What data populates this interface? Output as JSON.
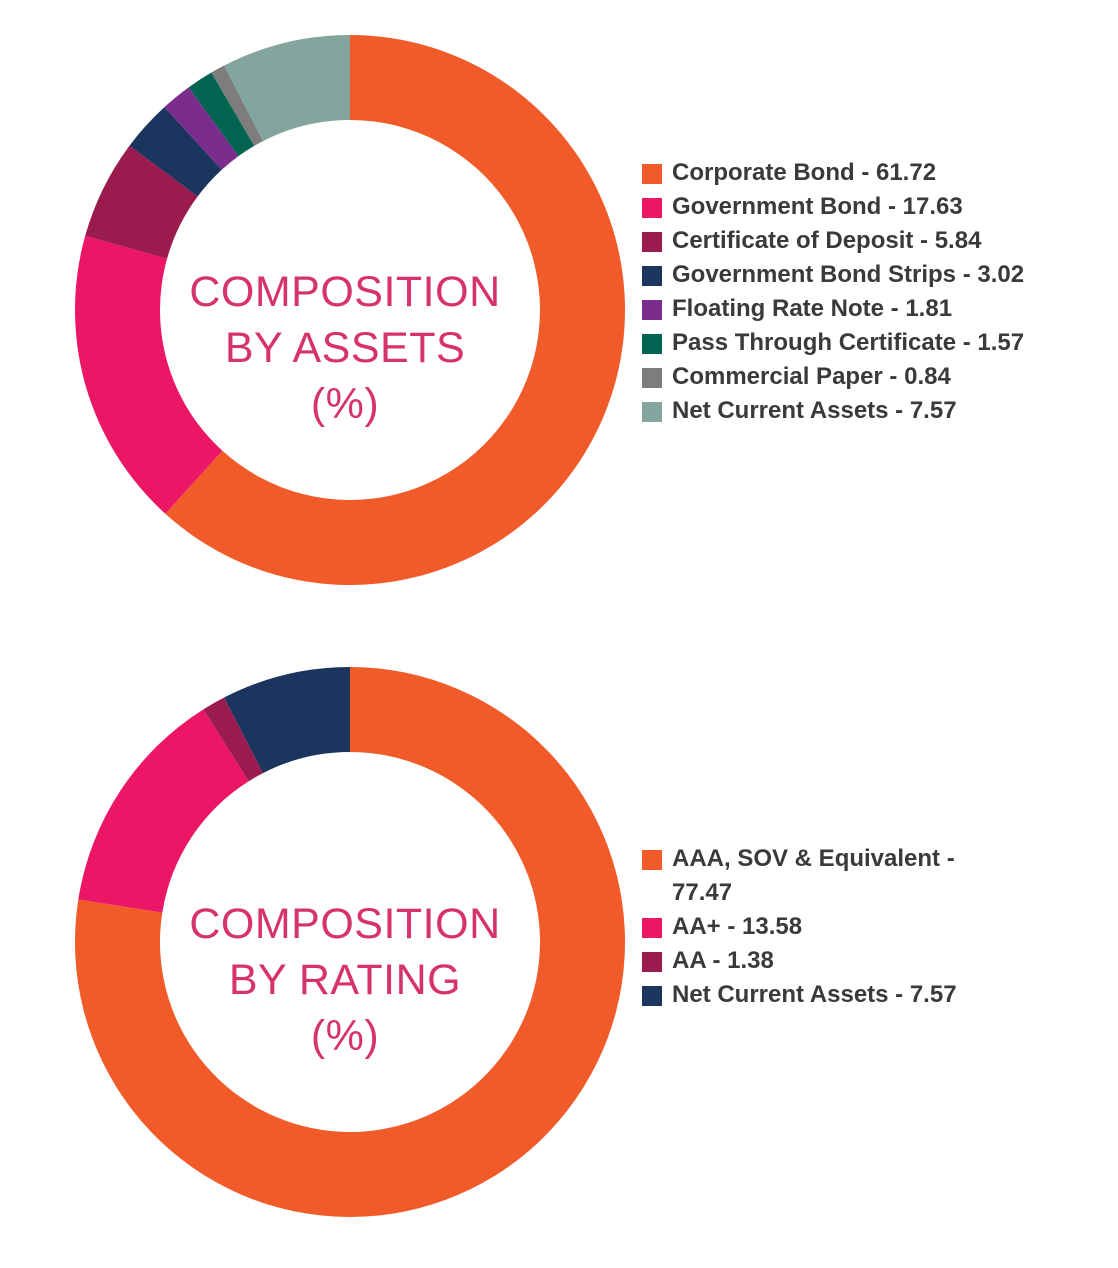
{
  "chart_data": [
    {
      "type": "pie",
      "title_lines": [
        "COMPOSITION",
        "BY ASSETS",
        "(%)"
      ],
      "categories": [
        "Corporate Bond",
        "Government Bond",
        "Certificate of Deposit",
        "Government Bond Strips",
        "Floating Rate Note",
        "Pass Through Certificate",
        "Commercial Paper",
        "Net Current Assets"
      ],
      "values": [
        61.72,
        17.63,
        5.84,
        3.02,
        1.81,
        1.57,
        0.84,
        7.57
      ],
      "colors": [
        "#f15a29",
        "#ec1667",
        "#9b1b4e",
        "#1c355e",
        "#7b2d8e",
        "#006450",
        "#7d7d7d",
        "#83a59d"
      ],
      "legend_labels": [
        "Corporate Bond - 61.72",
        "Government Bond - 17.63",
        "Certificate of Deposit - 5.84",
        "Government Bond Strips - 3.02",
        "Floating Rate Note - 1.81",
        "Pass Through Certificate - 1.57",
        "Commercial Paper - 0.84",
        "Net Current Assets - 7.57"
      ],
      "legend_placement": "right"
    },
    {
      "type": "pie",
      "title_lines": [
        "COMPOSITION",
        "BY RATING",
        "(%)"
      ],
      "categories": [
        "AAA, SOV & Equivalent",
        "AA+",
        "AA",
        "Net Current Assets"
      ],
      "values": [
        77.47,
        13.58,
        1.38,
        7.57
      ],
      "colors": [
        "#f15a29",
        "#ec1667",
        "#9b1b4e",
        "#1c355e"
      ],
      "legend_labels": [
        "AAA, SOV & Equivalent - 77.47",
        "AA+ - 13.58",
        "AA - 1.38",
        "Net Current Assets - 7.57"
      ],
      "legend_placement": "right"
    }
  ],
  "title_color": "#d6336c"
}
